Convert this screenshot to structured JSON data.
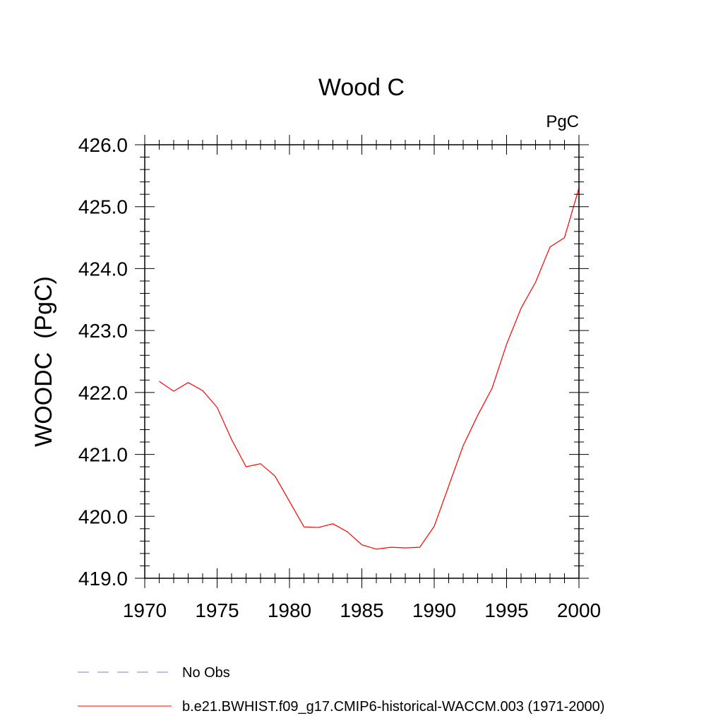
{
  "chart_data": {
    "type": "line",
    "title": "Wood C",
    "units_label": "PgC",
    "ylabel": "WOODC  (PgC)",
    "xlabel": "",
    "xlim": [
      1970,
      2000
    ],
    "ylim": [
      419.0,
      426.0
    ],
    "x_ticks": [
      1970,
      1975,
      1980,
      1985,
      1990,
      1995,
      2000
    ],
    "y_ticks": [
      "419.0",
      "420.0",
      "421.0",
      "422.0",
      "423.0",
      "424.0",
      "425.0",
      "426.0"
    ],
    "grid": false,
    "legend_position": "bottom",
    "series": [
      {
        "name": "No Obs",
        "color": "#7f7fbf",
        "dash": "dashed",
        "x": [],
        "values": []
      },
      {
        "name": "b.e21.BWHIST.f09_g17.CMIP6-historical-WACCM.003 (1971-2000)",
        "color": "#ff0000",
        "dash": "solid",
        "x": [
          1971,
          1972,
          1973,
          1974,
          1975,
          1976,
          1977,
          1978,
          1979,
          1980,
          1981,
          1982,
          1983,
          1984,
          1985,
          1986,
          1987,
          1988,
          1989,
          1990,
          1991,
          1992,
          1993,
          1994,
          1995,
          1996,
          1997,
          1998,
          1999,
          2000
        ],
        "values": [
          422.18,
          422.02,
          422.16,
          422.03,
          421.76,
          421.24,
          420.8,
          420.85,
          420.65,
          420.24,
          419.83,
          419.82,
          419.88,
          419.75,
          419.54,
          419.47,
          419.5,
          419.49,
          419.5,
          419.84,
          420.49,
          421.14,
          421.63,
          422.07,
          422.78,
          423.36,
          423.78,
          424.35,
          424.5,
          425.3
        ]
      }
    ]
  }
}
